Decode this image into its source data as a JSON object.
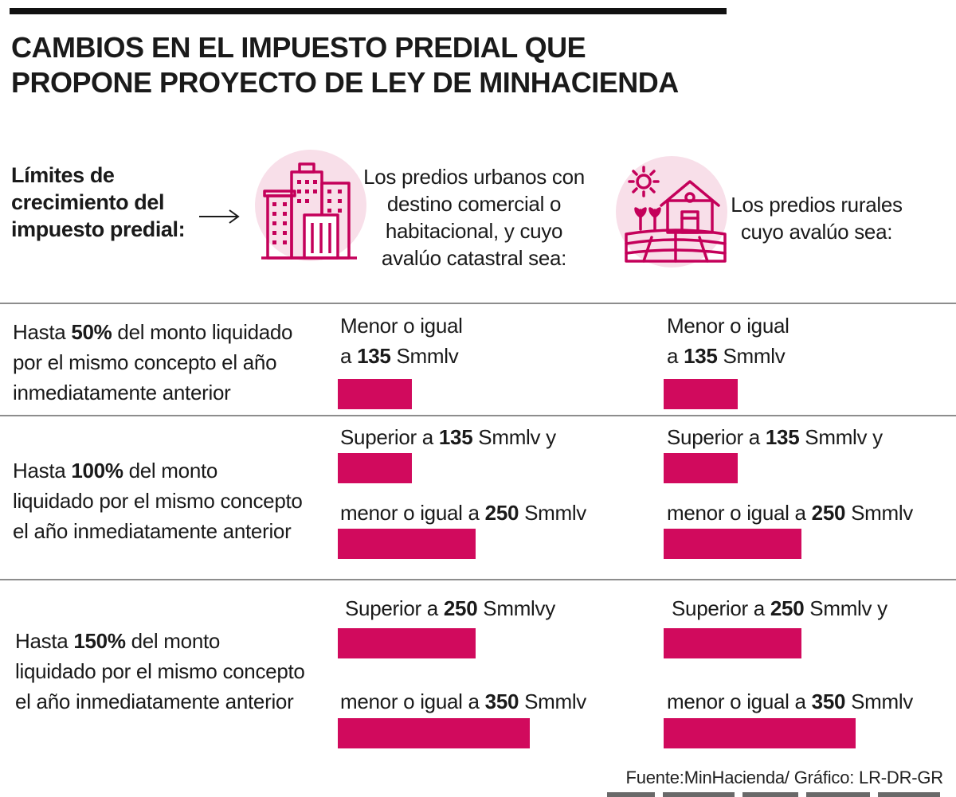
{
  "title": {
    "line1": "CAMBIOS EN EL IMPUESTO PREDIAL QUE",
    "line2": "PROPONE PROYECTO DE LEY DE MINHACIENDA"
  },
  "intro": {
    "label_lines": [
      "Límites de",
      "crecimiento del",
      "impuesto predial:"
    ],
    "urban_lines": [
      "Los predios urbanos con",
      "destino comercial o",
      "habitacional, y cuyo",
      "avalúo catastral sea:"
    ],
    "rural_lines": [
      "Los predios rurales",
      "cuyo avalúo sea:"
    ],
    "icons": {
      "urban": "city-buildings-icon",
      "rural": "farm-house-icon",
      "arrow": "arrow-right-icon"
    }
  },
  "colors": {
    "accent": "#d10a5d",
    "accent_light": "#f8dfe9",
    "rule": "#8d8d8d"
  },
  "chart_data": {
    "type": "table",
    "unit": "Smmlv",
    "columns": [
      "urbanos",
      "rurales"
    ],
    "rows": [
      {
        "label_pre": "Hasta ",
        "label_bold": "50%",
        "label_post_lines": [
          " del monto liquidado",
          "por el mismo concepto el año",
          "inmediatamente anterior"
        ],
        "conditions": [
          {
            "pre": "Menor o igual",
            "pre2": "a ",
            "value": 135,
            "post": " Smmlv"
          }
        ],
        "bars": {
          "urbanos": [
            135
          ],
          "rurales": [
            135
          ]
        }
      },
      {
        "label_pre": "Hasta ",
        "label_bold": "100%",
        "label_post_lines": [
          " del monto",
          "liquidado por el mismo concepto",
          "el año inmediatamente anterior"
        ],
        "conditions": [
          {
            "pre": "Superior a ",
            "value": 135,
            "post": " Smmlv y"
          },
          {
            "pre": "menor o igual a ",
            "value": 250,
            "post": " Smmlv"
          }
        ],
        "bars": {
          "urbanos": [
            135,
            250
          ],
          "rurales": [
            135,
            250
          ]
        }
      },
      {
        "label_pre": "Hasta ",
        "label_bold": "150%",
        "label_post_lines": [
          " del monto",
          "liquidado por el mismo concepto",
          "el año inmediatamente anterior"
        ],
        "conditions_urbanos": [
          {
            "pre": "Superior a ",
            "value": 250,
            "post": " Smmlvy"
          },
          {
            "pre": "menor o igual a ",
            "value": 350,
            "post": " Smmlv"
          }
        ],
        "conditions_rurales": [
          {
            "pre": "Superior a ",
            "value": 250,
            "post": " Smmlv y"
          },
          {
            "pre": "menor o igual a ",
            "value": 350,
            "post": " Smmlv"
          }
        ],
        "bars": {
          "urbanos": [
            250,
            350
          ],
          "rurales": [
            250,
            350
          ]
        }
      }
    ]
  },
  "source": "Fuente:MinHacienda/ Gráfico: LR-DR-GR"
}
